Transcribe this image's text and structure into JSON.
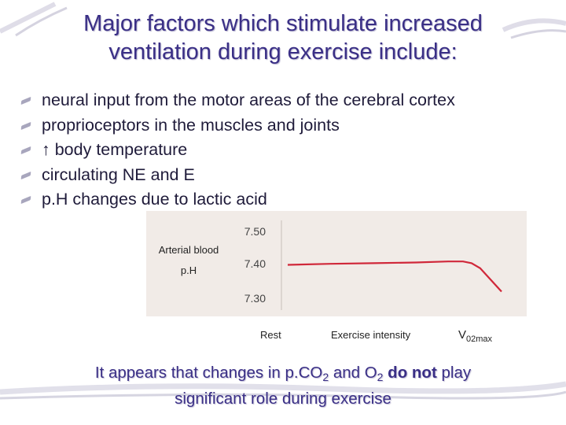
{
  "slide": {
    "title_line1": "Major factors which stimulate increased",
    "title_line2": "ventilation during exercise include:",
    "bullets": [
      "neural input from the motor areas of the cerebral cortex",
      "proprioceptors in the muscles and joints",
      "↑ body temperature",
      "circulating NE and E",
      "p.H changes due to lactic acid"
    ],
    "footer": {
      "part1": "It appears that changes in p.CO",
      "sub1": "2",
      "part2": " and O",
      "sub2": "2",
      "emph": "do not",
      "part3": " play",
      "line2": "significant role during exercise"
    },
    "colors": {
      "title": "#3a2f86",
      "line": "#d0283a",
      "panel": "#f1ebe7"
    }
  },
  "chart_data": {
    "type": "line",
    "ylabel_line1": "Arterial blood",
    "ylabel_line2": "p.H",
    "xlabel": "Exercise intensity",
    "x_categories": [
      "Rest",
      "Exercise intensity"
    ],
    "x_max_label": "V",
    "x_max_sub": "02max",
    "yticks": [
      "7.50",
      "7.40",
      "7.30"
    ],
    "ylim": [
      7.3,
      7.5
    ],
    "xlim": [
      0,
      100
    ],
    "grid": false,
    "series": [
      {
        "x": [
          0,
          20,
          40,
          60,
          75,
          82,
          86,
          90,
          100
        ],
        "y": [
          7.4,
          7.403,
          7.405,
          7.407,
          7.41,
          7.41,
          7.405,
          7.39,
          7.32
        ]
      }
    ]
  }
}
